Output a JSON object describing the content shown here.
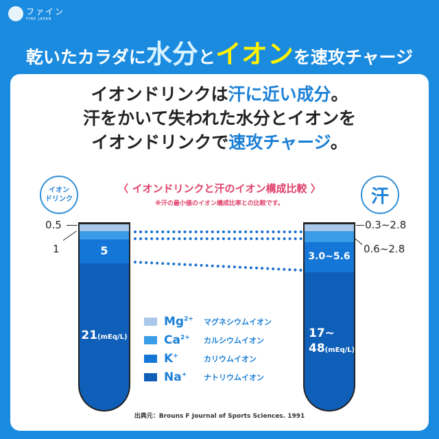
{
  "brand": {
    "name": "ファイン",
    "sub": "FINE JAPAN"
  },
  "headline": {
    "part1": "乾いたカラダに",
    "water": "水分",
    "part2": "と",
    "ion": "イオン",
    "part3": "を速攻チャージ"
  },
  "intro": {
    "line1a": "イオンドリンクは",
    "line1b": "汗に近い成分",
    "line1c": "。",
    "line2": "汗をかいて失われた水分とイオンを",
    "line3a": "イオンドリンクで",
    "line3b": "速攻チャージ",
    "line3c": "。"
  },
  "comparison": {
    "title": "〈 イオンドリンクと汗のイオン構成比較 〉",
    "note": "※汗の最小値のイオン構成比率との比較です。"
  },
  "left": {
    "bubble": "イオン\nドリンク",
    "mg": "0.5",
    "ca": "1",
    "k": "5",
    "na": "21",
    "unit": "(mEq/L)"
  },
  "right": {
    "bubble": "汗",
    "mg": "0.3~2.8",
    "ca": "0.6~2.8",
    "k": "3.0~5.6",
    "na_a": "17~",
    "na_b": "48",
    "unit": "(mEq/L)"
  },
  "colors": {
    "mg": "#a9c7e8",
    "ca": "#3a9be6",
    "k": "#1476d6",
    "na": "#0f5fb8"
  },
  "legend": [
    {
      "sym": "Mg",
      "sup": "2+",
      "jp": "マグネシウムイオン"
    },
    {
      "sym": "Ca",
      "sup": "2+",
      "jp": "カルシウムイオン"
    },
    {
      "sym": "K",
      "sup": "+",
      "jp": "カリウムイオン"
    },
    {
      "sym": "Na",
      "sup": "+",
      "jp": "ナトリウムイオン"
    }
  ],
  "source": "出典元：Brouns F Journal of Sports Sciences. 1991"
}
